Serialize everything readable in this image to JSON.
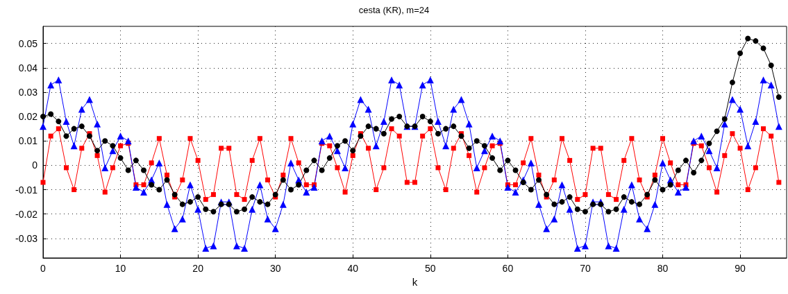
{
  "chart_data": {
    "type": "line",
    "title": "cesta (KR), m=24",
    "xlabel": "k",
    "x": [
      0,
      1,
      2,
      3,
      4,
      5,
      6,
      7,
      8,
      9,
      10,
      11,
      12,
      13,
      14,
      15,
      16,
      17,
      18,
      19,
      20,
      21,
      22,
      23,
      24,
      25,
      26,
      27,
      28,
      29,
      30,
      31,
      32,
      33,
      34,
      35,
      36,
      37,
      38,
      39,
      40,
      41,
      42,
      43,
      44,
      45,
      46,
      47,
      48,
      49,
      50,
      51,
      52,
      53,
      54,
      55,
      56,
      57,
      58,
      59,
      60,
      61,
      62,
      63,
      64,
      65,
      66,
      67,
      68,
      69,
      70,
      71,
      72,
      73,
      74,
      75,
      76,
      77,
      78,
      79,
      80,
      81,
      82,
      83,
      84,
      85,
      86,
      87,
      88,
      89,
      90,
      91,
      92,
      93,
      94,
      95
    ],
    "series": [
      {
        "color": "#ff0000",
        "marker": "square",
        "values": [
          -0.007,
          0.012,
          0.015,
          -0.001,
          -0.01,
          0.007,
          0.013,
          0.004,
          -0.011,
          -0.001,
          0.008,
          0.009,
          -0.008,
          -0.008,
          0.001,
          0.011,
          -0.004,
          -0.013,
          -0.006,
          0.011,
          0.002,
          -0.014,
          -0.012,
          0.007,
          0.007,
          -0.012,
          -0.014,
          0.002,
          0.011,
          -0.006,
          -0.013,
          -0.004,
          0.011,
          0.001,
          -0.008,
          -0.008,
          0.009,
          0.008,
          -0.001,
          -0.011,
          0.004,
          0.013,
          0.007,
          -0.01,
          -0.001,
          0.015,
          0.012,
          -0.007,
          -0.007,
          0.012,
          0.015,
          -0.001,
          -0.01,
          0.007,
          0.013,
          0.004,
          -0.011,
          -0.001,
          0.008,
          0.009,
          -0.008,
          -0.008,
          0.001,
          0.011,
          -0.004,
          -0.013,
          -0.006,
          0.011,
          0.002,
          -0.014,
          -0.012,
          0.007,
          0.007,
          -0.012,
          -0.014,
          0.002,
          0.011,
          -0.006,
          -0.013,
          -0.004,
          0.011,
          0.001,
          -0.008,
          -0.008,
          0.009,
          0.008,
          -0.001,
          -0.011,
          0.004,
          0.013,
          0.007,
          -0.01,
          -0.001,
          0.015,
          0.012,
          -0.007
        ]
      },
      {
        "color": "#0000ff",
        "marker": "triangle",
        "values": [
          0.016,
          0.033,
          0.035,
          0.018,
          0.008,
          0.023,
          0.027,
          0.017,
          -0.001,
          0.006,
          0.012,
          0.01,
          -0.009,
          -0.011,
          -0.006,
          0.001,
          -0.016,
          -0.026,
          -0.022,
          -0.008,
          -0.018,
          -0.034,
          -0.033,
          -0.015,
          -0.015,
          -0.033,
          -0.034,
          -0.018,
          -0.008,
          -0.022,
          -0.026,
          -0.016,
          0.001,
          -0.006,
          -0.011,
          -0.009,
          0.01,
          0.012,
          0.006,
          -0.001,
          0.017,
          0.027,
          0.023,
          0.008,
          0.018,
          0.035,
          0.033,
          0.016,
          0.016,
          0.033,
          0.035,
          0.018,
          0.008,
          0.023,
          0.027,
          0.017,
          -0.001,
          0.006,
          0.012,
          0.01,
          -0.009,
          -0.011,
          -0.006,
          0.001,
          -0.016,
          -0.026,
          -0.022,
          -0.008,
          -0.018,
          -0.034,
          -0.033,
          -0.015,
          -0.015,
          -0.033,
          -0.034,
          -0.018,
          -0.008,
          -0.022,
          -0.026,
          -0.016,
          0.001,
          -0.006,
          -0.011,
          -0.009,
          0.01,
          0.012,
          0.006,
          -0.001,
          0.017,
          0.027,
          0.023,
          0.008,
          0.018,
          0.035,
          0.033,
          0.016
        ]
      },
      {
        "color": "#000000",
        "marker": "circle",
        "values": [
          0.02,
          0.021,
          0.018,
          0.012,
          0.015,
          0.016,
          0.012,
          0.006,
          0.01,
          0.008,
          0.003,
          -0.002,
          0.002,
          -0.002,
          -0.008,
          -0.01,
          -0.006,
          -0.012,
          -0.016,
          -0.015,
          -0.013,
          -0.018,
          -0.019,
          -0.016,
          -0.016,
          -0.019,
          -0.018,
          -0.013,
          -0.015,
          -0.016,
          -0.012,
          -0.006,
          -0.01,
          -0.008,
          -0.002,
          0.002,
          -0.002,
          0.003,
          0.008,
          0.01,
          0.006,
          0.012,
          0.016,
          0.015,
          0.013,
          0.019,
          0.02,
          0.016,
          0.016,
          0.02,
          0.018,
          0.013,
          0.015,
          0.016,
          0.012,
          0.007,
          0.01,
          0.008,
          0.003,
          -0.002,
          0.002,
          -0.002,
          -0.007,
          -0.01,
          -0.006,
          -0.012,
          -0.016,
          -0.015,
          -0.013,
          -0.018,
          -0.019,
          -0.016,
          -0.016,
          -0.019,
          -0.018,
          -0.013,
          -0.015,
          -0.016,
          -0.012,
          -0.006,
          -0.01,
          -0.008,
          -0.002,
          0.002,
          -0.003,
          0.002,
          0.009,
          0.014,
          0.019,
          0.034,
          0.046,
          0.052,
          0.051,
          0.048,
          0.041,
          0.028
        ]
      }
    ],
    "xlim": [
      0,
      96
    ],
    "xticks": [
      0,
      10,
      20,
      30,
      40,
      50,
      60,
      70,
      80,
      90
    ],
    "ylim": [
      -0.038,
      0.057
    ],
    "yticks": [
      -0.03,
      -0.02,
      -0.01,
      0,
      0.01,
      0.02,
      0.03,
      0.04,
      0.05
    ],
    "grid": true,
    "line_style": "solid"
  }
}
